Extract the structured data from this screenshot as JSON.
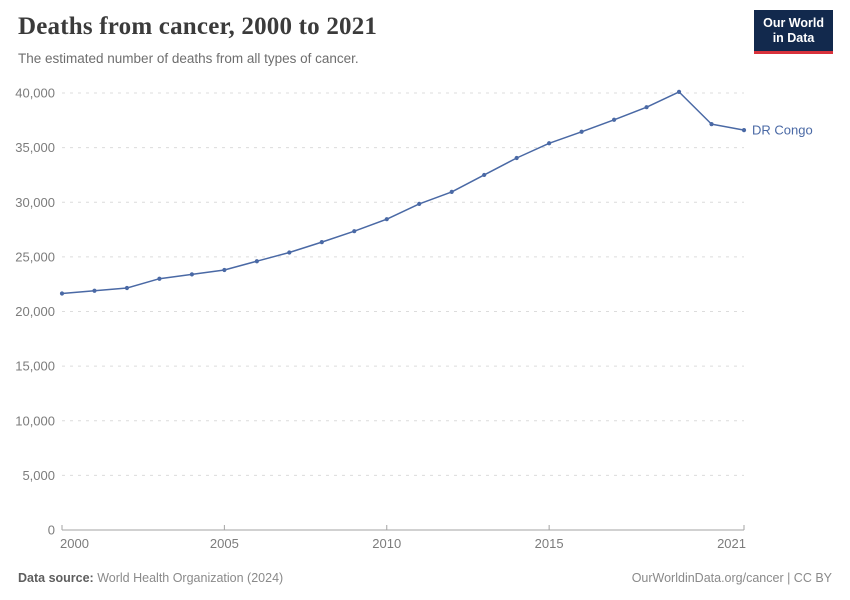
{
  "header": {
    "title": "Deaths from cancer, 2000 to 2021",
    "subtitle": "The estimated number of deaths from all types of cancer."
  },
  "logo": {
    "line1": "Our World",
    "line2": "in Data",
    "bg_color": "#12294d",
    "accent_color": "#d8323c",
    "text_color": "#ffffff"
  },
  "chart_data": {
    "type": "line",
    "title": "Deaths from cancer, 2000 to 2021",
    "xlabel": "",
    "ylabel": "",
    "x": [
      2000,
      2001,
      2002,
      2003,
      2004,
      2005,
      2006,
      2007,
      2008,
      2009,
      2010,
      2011,
      2012,
      2013,
      2014,
      2015,
      2016,
      2017,
      2018,
      2019,
      2020,
      2021
    ],
    "series": [
      {
        "name": "DR Congo",
        "color": "#4a69a5",
        "values": [
          21650,
          21900,
          22150,
          23000,
          23400,
          23800,
          24600,
          25400,
          26350,
          27350,
          28450,
          29850,
          30950,
          32500,
          34050,
          35400,
          36450,
          37550,
          38700,
          40100,
          37150,
          36600
        ]
      }
    ],
    "xlim": [
      2000,
      2021
    ],
    "ylim": [
      0,
      40000
    ],
    "x_ticks": [
      2000,
      2005,
      2010,
      2015,
      2021
    ],
    "y_ticks": [
      0,
      5000,
      10000,
      15000,
      20000,
      25000,
      30000,
      35000,
      40000
    ],
    "grid": "horizontal-dashed",
    "gridline_color": "#dcdcdc",
    "axis_color": "#a3a3a3",
    "legend_position": "end-of-line-label",
    "markers": true
  },
  "footer": {
    "source_label": "Data source:",
    "source_text": "World Health Organization (2024)",
    "credit_text": "OurWorldinData.org/cancer | CC BY"
  }
}
